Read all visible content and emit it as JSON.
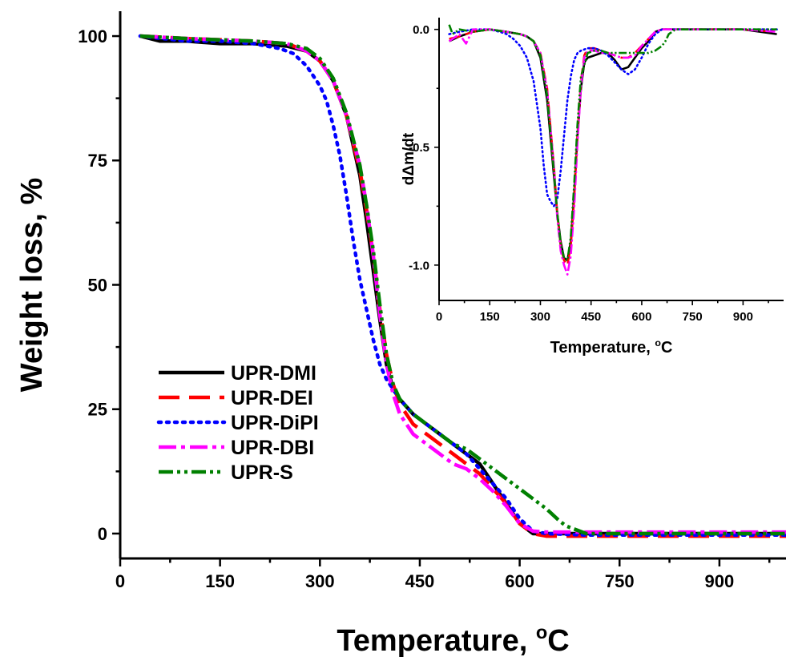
{
  "chart_data": [
    {
      "type": "line",
      "id": "main",
      "xlabel": "Temperature, ",
      "xlabel_sup": "o",
      "xlabel_unit": "C",
      "ylabel": "Weight loss, %",
      "xlim": [
        0,
        1000
      ],
      "ylim": [
        -5,
        105
      ],
      "x_ticks": [
        "0",
        "150",
        "300",
        "450",
        "600",
        "750",
        "900"
      ],
      "y_ticks": [
        "0",
        "25",
        "50",
        "75",
        "100"
      ],
      "legend_position": "bottom-left",
      "series": [
        {
          "name": "UPR-DMI",
          "color": "#000000",
          "dash": "solid",
          "x": [
            30,
            60,
            100,
            150,
            200,
            250,
            280,
            300,
            320,
            340,
            360,
            370,
            380,
            390,
            400,
            410,
            420,
            440,
            460,
            480,
            500,
            520,
            540,
            560,
            580,
            600,
            620,
            640,
            700,
            800,
            900,
            1000
          ],
          "y": [
            100,
            99,
            99,
            98.5,
            98.5,
            98,
            97,
            95,
            91,
            84,
            72,
            63,
            53,
            43,
            34,
            29,
            27,
            24,
            22,
            20,
            18,
            16,
            14,
            10,
            6,
            2,
            0,
            0,
            0,
            0,
            0,
            0
          ]
        },
        {
          "name": "UPR-DEI",
          "color": "#ff0000",
          "dash": "long",
          "x": [
            30,
            100,
            200,
            250,
            280,
            300,
            320,
            340,
            360,
            370,
            380,
            390,
            400,
            410,
            420,
            440,
            460,
            480,
            500,
            520,
            540,
            560,
            580,
            600,
            620,
            640,
            700,
            800,
            900,
            1000
          ],
          "y": [
            100,
            99.5,
            99,
            98.5,
            97,
            95,
            91,
            84,
            73,
            65,
            56,
            45,
            36,
            30,
            26,
            22,
            20,
            18,
            16,
            14,
            12,
            9,
            6,
            2,
            0,
            -0.5,
            -0.5,
            -0.5,
            -0.5,
            -0.5
          ]
        },
        {
          "name": "UPR-DiPI",
          "color": "#0000ff",
          "dash": "dotted",
          "x": [
            30,
            100,
            150,
            200,
            240,
            260,
            280,
            300,
            310,
            320,
            330,
            340,
            350,
            360,
            370,
            380,
            390,
            400,
            420,
            440,
            460,
            480,
            500,
            520,
            540,
            560,
            580,
            600,
            620,
            640,
            700,
            800,
            900,
            1000
          ],
          "y": [
            100,
            99,
            99,
            98.5,
            97.5,
            96.5,
            94,
            90,
            87,
            82,
            76,
            68,
            59,
            51,
            45,
            39,
            34,
            31,
            27,
            24,
            22,
            20,
            18,
            16,
            13,
            10,
            7,
            3,
            0.5,
            0,
            -0.3,
            -0.3,
            -0.3,
            -0.3
          ]
        },
        {
          "name": "UPR-DBI",
          "color": "#ff00ff",
          "dash": "dashdot",
          "x": [
            30,
            100,
            200,
            250,
            280,
            300,
            320,
            340,
            360,
            370,
            380,
            390,
            400,
            410,
            420,
            440,
            460,
            480,
            500,
            520,
            540,
            560,
            580,
            600,
            620,
            640,
            700,
            800,
            900,
            1000
          ],
          "y": [
            100,
            99.5,
            99,
            98.5,
            97,
            95,
            91,
            84,
            74,
            66,
            56,
            44,
            34,
            28,
            24,
            20,
            18,
            16,
            14,
            13,
            11,
            8.5,
            5.5,
            2,
            0.5,
            0.3,
            0.3,
            0.3,
            0.3,
            0.3
          ]
        },
        {
          "name": "UPR-S",
          "color": "#008000",
          "dash": "dashdotdot",
          "x": [
            30,
            100,
            200,
            250,
            280,
            300,
            320,
            340,
            360,
            370,
            380,
            390,
            400,
            410,
            420,
            440,
            460,
            480,
            500,
            520,
            540,
            560,
            580,
            600,
            620,
            640,
            660,
            670,
            700,
            800,
            900,
            1000
          ],
          "y": [
            100,
            99.5,
            99,
            98.5,
            97.5,
            95.5,
            91.5,
            84.5,
            74,
            66,
            57,
            46,
            36,
            30,
            27,
            24,
            22,
            20,
            18,
            17,
            15,
            13,
            11,
            9,
            7,
            5,
            2.5,
            1.5,
            0,
            0,
            0,
            0
          ]
        }
      ]
    },
    {
      "type": "line",
      "id": "inset",
      "xlabel": "Temperature, ",
      "xlabel_sup": "o",
      "xlabel_unit": "C",
      "ylabel": "dΔm/dt",
      "xlim": [
        0,
        1020
      ],
      "ylim": [
        -1.15,
        0.05
      ],
      "x_ticks": [
        "0",
        "150",
        "300",
        "450",
        "600",
        "750",
        "900"
      ],
      "y_ticks": [
        "0.0",
        "-0.5",
        "-1.0"
      ],
      "series": [
        {
          "name": "UPR-DMI",
          "color": "#000000",
          "dash": "solid",
          "x": [
            30,
            60,
            80,
            100,
            150,
            200,
            240,
            260,
            280,
            300,
            320,
            340,
            350,
            360,
            370,
            380,
            390,
            400,
            410,
            420,
            430,
            440,
            460,
            480,
            500,
            520,
            540,
            560,
            580,
            600,
            620,
            640,
            660,
            700,
            800,
            900,
            1000
          ],
          "y": [
            -0.05,
            -0.03,
            -0.02,
            -0.01,
            0,
            -0.01,
            -0.02,
            -0.03,
            -0.05,
            -0.12,
            -0.3,
            -0.62,
            -0.78,
            -0.9,
            -0.97,
            -0.98,
            -0.9,
            -0.7,
            -0.45,
            -0.25,
            -0.14,
            -0.12,
            -0.11,
            -0.1,
            -0.1,
            -0.13,
            -0.17,
            -0.16,
            -0.12,
            -0.08,
            -0.05,
            -0.01,
            0,
            0,
            0,
            0,
            -0.02
          ]
        },
        {
          "name": "UPR-DEI",
          "color": "#ff0000",
          "dash": "long",
          "x": [
            30,
            60,
            100,
            150,
            200,
            240,
            260,
            280,
            300,
            320,
            340,
            350,
            360,
            370,
            380,
            390,
            400,
            410,
            420,
            430,
            440,
            460,
            480,
            500,
            520,
            540,
            560,
            580,
            600,
            620,
            640,
            660,
            700,
            800,
            900,
            1000
          ],
          "y": [
            -0.04,
            -0.03,
            -0.01,
            0,
            -0.01,
            -0.02,
            -0.03,
            -0.05,
            -0.1,
            -0.25,
            -0.58,
            -0.78,
            -0.92,
            -0.98,
            -1.0,
            -0.92,
            -0.72,
            -0.44,
            -0.22,
            -0.11,
            -0.08,
            -0.08,
            -0.09,
            -0.1,
            -0.11,
            -0.12,
            -0.12,
            -0.1,
            -0.07,
            -0.04,
            -0.01,
            0,
            0,
            0,
            0,
            -0.01
          ]
        },
        {
          "name": "UPR-DiPI",
          "color": "#0000ff",
          "dash": "dotted",
          "x": [
            30,
            60,
            100,
            150,
            180,
            200,
            220,
            240,
            260,
            280,
            300,
            310,
            320,
            330,
            340,
            350,
            360,
            370,
            380,
            390,
            400,
            410,
            420,
            440,
            460,
            480,
            500,
            520,
            540,
            560,
            580,
            600,
            620,
            640,
            660,
            700,
            800,
            900,
            1000
          ],
          "y": [
            -0.02,
            -0.01,
            0,
            0,
            -0.01,
            -0.02,
            -0.04,
            -0.07,
            -0.12,
            -0.22,
            -0.42,
            -0.58,
            -0.7,
            -0.73,
            -0.75,
            -0.72,
            -0.6,
            -0.45,
            -0.3,
            -0.2,
            -0.13,
            -0.1,
            -0.09,
            -0.08,
            -0.08,
            -0.09,
            -0.11,
            -0.14,
            -0.17,
            -0.19,
            -0.17,
            -0.12,
            -0.06,
            -0.02,
            0,
            0,
            0,
            0,
            0
          ]
        },
        {
          "name": "UPR-DBI",
          "color": "#ff00ff",
          "dash": "dashdot",
          "x": [
            30,
            60,
            80,
            100,
            150,
            200,
            240,
            260,
            280,
            300,
            320,
            340,
            350,
            360,
            370,
            380,
            390,
            400,
            410,
            420,
            430,
            440,
            460,
            480,
            500,
            520,
            540,
            560,
            580,
            600,
            620,
            640,
            660,
            700,
            800,
            900,
            1000
          ],
          "y": [
            -0.05,
            -0.02,
            -0.06,
            0,
            0,
            -0.01,
            -0.02,
            -0.03,
            -0.05,
            -0.1,
            -0.26,
            -0.58,
            -0.8,
            -0.94,
            -1.0,
            -1.04,
            -0.96,
            -0.76,
            -0.48,
            -0.24,
            -0.12,
            -0.09,
            -0.09,
            -0.1,
            -0.1,
            -0.11,
            -0.12,
            -0.12,
            -0.11,
            -0.07,
            -0.04,
            -0.01,
            0,
            0,
            0,
            0,
            -0.01
          ]
        },
        {
          "name": "UPR-S",
          "color": "#008000",
          "dash": "dashdotdot",
          "x": [
            30,
            40,
            60,
            100,
            150,
            200,
            240,
            260,
            280,
            300,
            320,
            340,
            350,
            360,
            370,
            380,
            390,
            400,
            410,
            420,
            440,
            460,
            480,
            500,
            520,
            540,
            560,
            580,
            600,
            620,
            640,
            660,
            670,
            680,
            700,
            800,
            900,
            1000
          ],
          "y": [
            0.02,
            -0.02,
            0,
            -0.01,
            0,
            -0.01,
            -0.02,
            -0.03,
            -0.05,
            -0.11,
            -0.28,
            -0.6,
            -0.78,
            -0.91,
            -0.97,
            -0.98,
            -0.88,
            -0.66,
            -0.4,
            -0.2,
            -0.1,
            -0.09,
            -0.09,
            -0.1,
            -0.1,
            -0.1,
            -0.1,
            -0.1,
            -0.1,
            -0.1,
            -0.09,
            -0.07,
            -0.05,
            -0.02,
            0,
            0,
            0,
            0
          ]
        }
      ]
    }
  ]
}
